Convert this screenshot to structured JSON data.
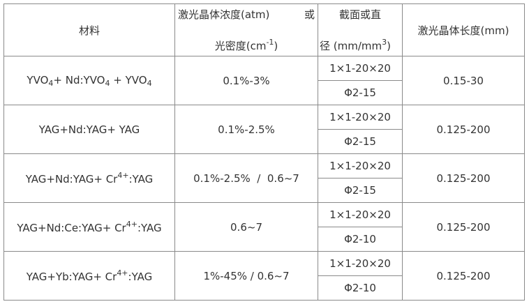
{
  "header": {
    "material": "材料",
    "concentration_line1": "激光晶体浓度(atm)",
    "concentration_or": "或",
    "concentration_line2": [
      {
        "text": "光密度(cm"
      },
      {
        "sup": "-1"
      },
      {
        "text": ")"
      }
    ],
    "dimension_line1": "截面或直",
    "dimension_line2": [
      {
        "text": "径 (mm/mm"
      },
      {
        "sup": "3"
      },
      {
        "text": ")"
      }
    ],
    "length": "激光晶体长度(mm)"
  },
  "table": {
    "rows": [
      {
        "material": [
          {
            "text": "YVO"
          },
          {
            "sub": "4"
          },
          {
            "text": "+ Nd:YVO"
          },
          {
            "sub": "4"
          },
          {
            "text": " + YVO"
          },
          {
            "sub": "4"
          }
        ],
        "concentration": "0.1%-3%",
        "dimensions": [
          "1×1-20×20",
          "Φ2-15"
        ],
        "length": "0.15-30"
      },
      {
        "material": [
          {
            "text": "YAG+Nd:YAG+ YAG"
          }
        ],
        "concentration": "0.1%-2.5%",
        "dimensions": [
          "1×1-20×20",
          "Φ2-15"
        ],
        "length": "0.125-200"
      },
      {
        "material": [
          {
            "text": "YAG+Nd:YAG+ Cr"
          },
          {
            "sup": "4+"
          },
          {
            "text": ":YAG"
          }
        ],
        "concentration": "0.1%-2.5%  /  0.6~7",
        "dimensions": [
          "1×1-20×20",
          "Φ2-15"
        ],
        "length": "0.125-200"
      },
      {
        "material": [
          {
            "text": "YAG+Nd:Ce:YAG+ Cr"
          },
          {
            "sup": "4+"
          },
          {
            "text": ":YAG"
          }
        ],
        "concentration": "0.6~7",
        "dimensions": [
          "1×1-20×20",
          "Φ2-10"
        ],
        "length": "0.125-200"
      },
      {
        "material": [
          {
            "text": "YAG+Yb:YAG+ Cr"
          },
          {
            "sup": "4+"
          },
          {
            "text": ":YAG"
          }
        ],
        "concentration": "1%-45% / 0.6~7",
        "dimensions": [
          "1×1-20×20",
          "Φ2-10"
        ],
        "length": "0.125-200"
      }
    ]
  }
}
